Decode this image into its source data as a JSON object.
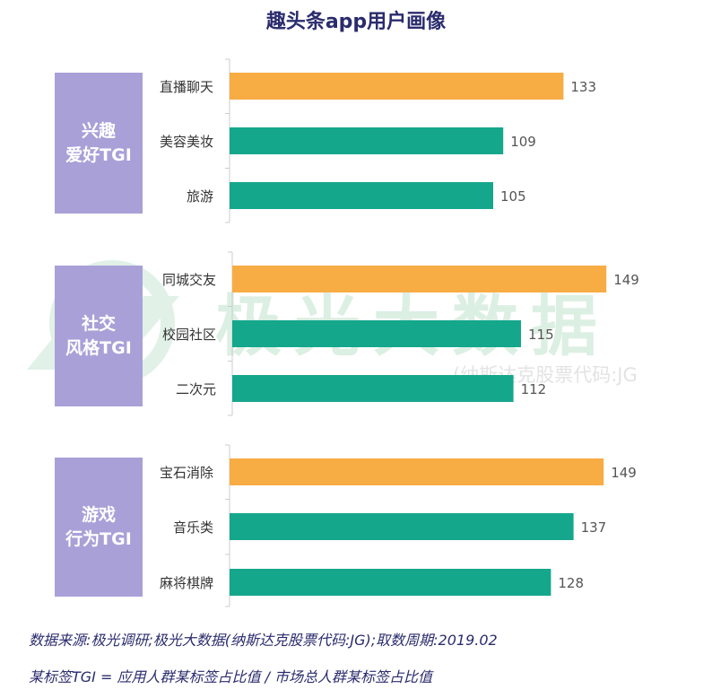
{
  "chart_data": {
    "type": "bar",
    "orientation": "horizontal",
    "title": "趣头条app用户画像",
    "groups": [
      {
        "label_lines": [
          "兴趣",
          "爱好TGI"
        ],
        "categories": [
          "直播聊天",
          "美容美妆",
          "旅游"
        ],
        "values": [
          133,
          109,
          105
        ],
        "highlight": [
          true,
          false,
          false
        ]
      },
      {
        "label_lines": [
          "社交",
          "风格TGI"
        ],
        "categories": [
          "同城交友",
          "校园社区",
          "二次元"
        ],
        "values": [
          149,
          115,
          112
        ],
        "highlight": [
          true,
          false,
          false
        ]
      },
      {
        "label_lines": [
          "游戏",
          "行为TGI"
        ],
        "categories": [
          "宝石消除",
          "音乐类",
          "麻将棋牌"
        ],
        "values": [
          149,
          137,
          128
        ],
        "highlight": [
          true,
          false,
          false
        ]
      }
    ],
    "colors": {
      "highlight": "#f7ac44",
      "normal": "#15a78c",
      "group_box": "#a9a0d8",
      "axis": "#cccccc",
      "value_text": "#555555",
      "category_text": "#333333"
    }
  },
  "watermark": {
    "main": "极光大数据",
    "sub": "(纳斯达克股票代码:JG"
  },
  "notes": {
    "source": "数据来源:极光调研;极光大数据(纳斯达克股票代码:JG);取数周期:2019.02",
    "definition": "某标签TGI = 应用人群某标签占比值 / 市场总人群某标签占比值"
  }
}
